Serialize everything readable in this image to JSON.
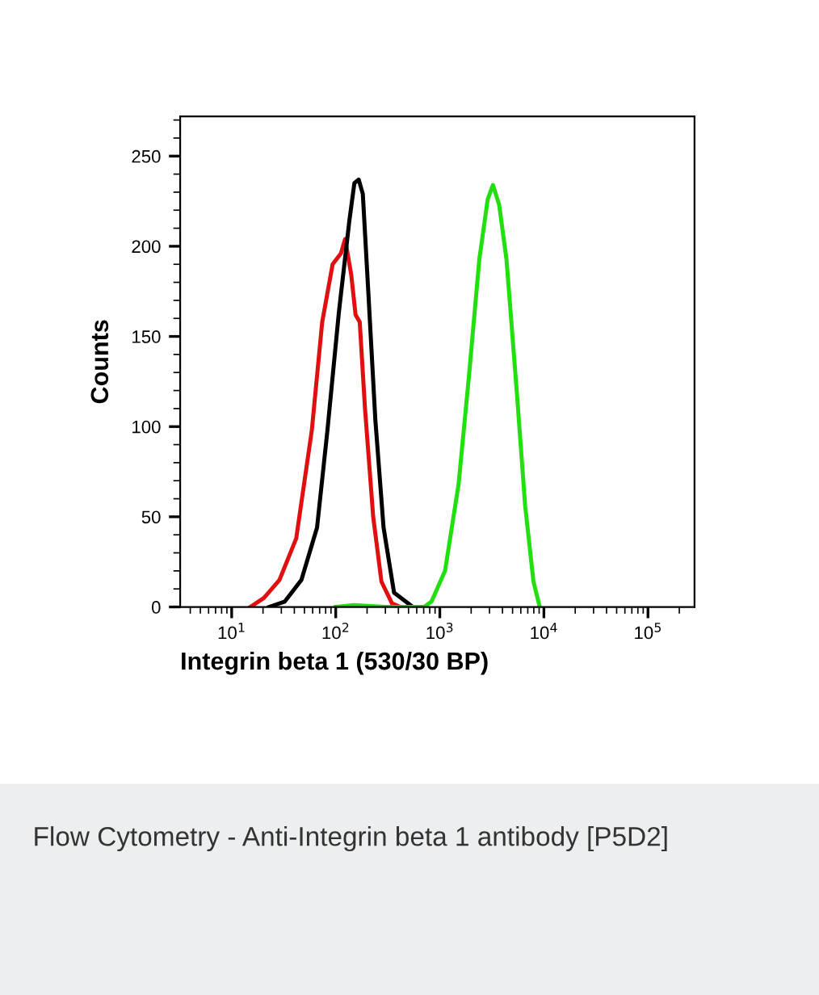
{
  "chart_data": {
    "type": "line",
    "xlabel": "Integrin beta 1 (530/30 BP)",
    "ylabel": "Counts",
    "log": "x",
    "xlim": [
      3.2,
      280000
    ],
    "ylim": [
      0,
      272
    ],
    "xticks": [
      {
        "value": 10,
        "label": "10$^{1}$"
      },
      {
        "value": 100,
        "label": "10$^{2}$"
      },
      {
        "value": 1000,
        "label": "10$^{3}$"
      },
      {
        "value": 10000,
        "label": "10$^{4}$"
      },
      {
        "value": 100000,
        "label": "10$^{5}$"
      }
    ],
    "yticks": [
      0,
      50,
      100,
      150,
      200,
      250
    ],
    "grid": false,
    "legend": false,
    "marker": "none",
    "line_style": "solid",
    "series": [
      {
        "color": "#e01010",
        "x": [
          15.1,
          20.4,
          28.8,
          41.7,
          58.9,
          74.1,
          93.3,
          112,
          123,
          141,
          155,
          170,
          191,
          229,
          275,
          347,
          417
        ],
        "values": [
          0,
          5,
          15,
          38,
          98,
          158,
          190,
          196,
          204,
          184,
          162,
          158,
          110,
          50,
          14,
          2,
          0
        ]
      },
      {
        "color": "#000000",
        "x": [
          22.9,
          32.4,
          46.8,
          66.1,
          83.2,
          107,
          135,
          151,
          166,
          182,
          204,
          240,
          288,
          363,
          550
        ],
        "values": [
          0,
          3,
          15,
          44,
          98,
          163,
          214,
          235,
          237,
          229,
          178,
          104,
          44,
          8,
          0
        ]
      },
      {
        "color": "#22e010",
        "x": [
          100,
          150,
          300,
          708,
          832,
          1122,
          1514,
          1905,
          2399,
          2884,
          3236,
          3715,
          4365,
          5495,
          6607,
          7943,
          9120
        ],
        "values": [
          0,
          1,
          0,
          0,
          3,
          20,
          68,
          128,
          193,
          226,
          234,
          223,
          193,
          119,
          56,
          14,
          0
        ]
      }
    ],
    "annotations": [
      "Flow Cytometry - Anti-Integrin beta 1 antibody [P5D2]"
    ]
  }
}
